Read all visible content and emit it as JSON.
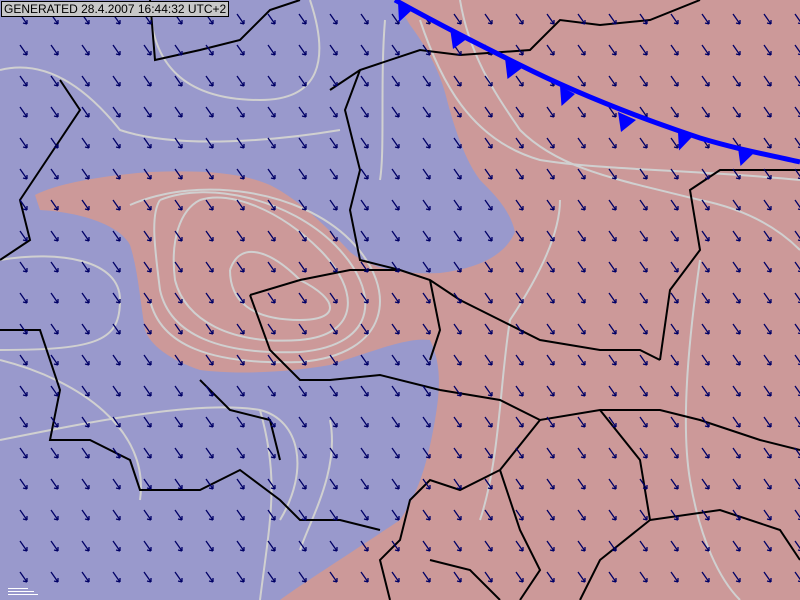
{
  "header": {
    "generated_label": "GENERATED 28.4.2007 16:44:32 UTC+2"
  },
  "map": {
    "colors": {
      "cold_region": "#9999cc",
      "warm_region": "#cc9999",
      "contour": "#d0d0d0",
      "border": "#000000",
      "wind_arrow": "#000066",
      "cold_front": "#0000ff"
    },
    "layers": [
      "temperature-field",
      "contours",
      "country-borders",
      "wind-arrows",
      "cold-front"
    ]
  }
}
